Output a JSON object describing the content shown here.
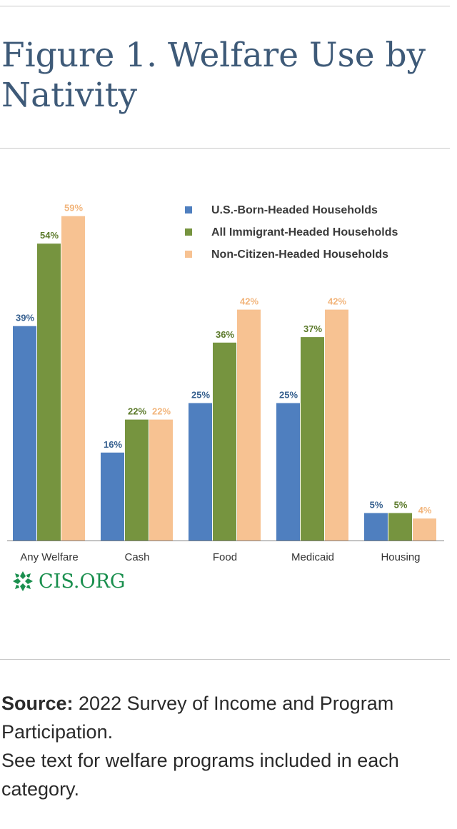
{
  "title": "Figure 1. Welfare Use by Nativity",
  "logo": {
    "text": "CIS.ORG",
    "icon": "cis-logo-icon"
  },
  "source": {
    "label": "Source:",
    "text": " 2022 Survey of Income and Program Participation.",
    "note": "See text for welfare programs included in each category."
  },
  "chart_data": {
    "type": "bar",
    "categories": [
      "Any Welfare",
      "Cash",
      "Food",
      "Medicaid",
      "Housing"
    ],
    "series": [
      {
        "name": "U.S.-Born-Headed Households",
        "values": [
          39,
          16,
          25,
          25,
          5
        ],
        "labels": [
          "39%",
          "16%",
          "25%",
          "25%",
          "5%"
        ],
        "color": "#4f7fbf"
      },
      {
        "name": "All Immigrant-Headed Households",
        "values": [
          54,
          22,
          36,
          37,
          5
        ],
        "labels": [
          "54%",
          "22%",
          "36%",
          "37%",
          "5%"
        ],
        "color": "#76943f"
      },
      {
        "name": "Non-Citizen-Headed Households",
        "values": [
          59,
          22,
          42,
          42,
          4
        ],
        "labels": [
          "59%",
          "22%",
          "42%",
          "42%",
          "4%"
        ],
        "color": "#f7c292"
      }
    ],
    "label_colors": [
      "#36608f",
      "#5c7a2b",
      "#f2b57c"
    ],
    "ylim": [
      0,
      59
    ],
    "grid": false,
    "legend_position": "top-right",
    "title": "",
    "xlabel": "",
    "ylabel": ""
  }
}
